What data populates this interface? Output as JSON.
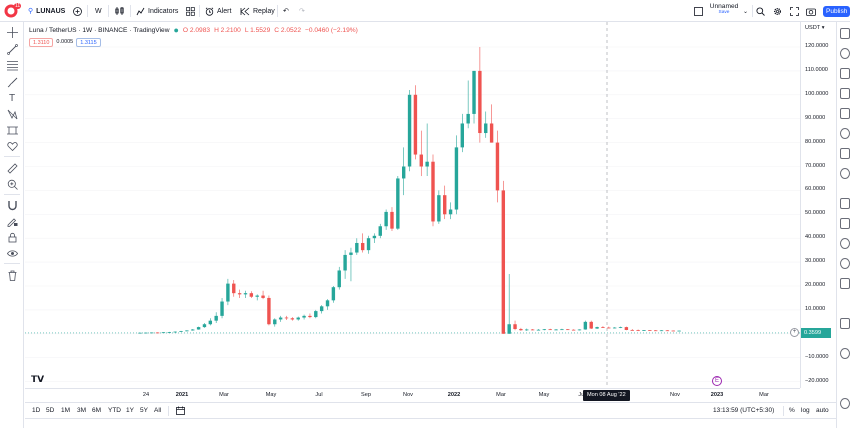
{
  "topbar": {
    "symbol": "LUNAUS",
    "avatar_badge": "11",
    "interval": "W",
    "indicators_label": "Indicators",
    "alert_label": "Alert",
    "replay_label": "Replay",
    "layout_name": "Unnamed",
    "layout_status": "Save",
    "publish_label": "Publish"
  },
  "legend": {
    "title": "Luna / TetherUS · 1W · BINANCE · TradingView",
    "open": "O 2.0983",
    "high": "H 2.2100",
    "low": "L 1.5529",
    "close": "C 2.0522",
    "change": "−0.0460 (−2.19%)",
    "bid": "1.3110",
    "spread": "0.0005",
    "ask": "1.3115"
  },
  "price_axis": {
    "currency": "USDT",
    "labels": [
      "120.0000",
      "110.0000",
      "100.0000",
      "90.0000",
      "80.0000",
      "70.0000",
      "60.0000",
      "50.0000",
      "40.0000",
      "30.0000",
      "20.0000",
      "10.0000",
      "−10.0000",
      "−20.0000"
    ],
    "last_price": "0.3599"
  },
  "time_axis": {
    "labels": [
      "24",
      "2021",
      "Mar",
      "May",
      "Jul",
      "Sep",
      "Nov",
      "2022",
      "Mar",
      "May",
      "Jul",
      "Nov",
      "2023",
      "Mar"
    ],
    "crosshair_label": "Mon 08 Aug '22"
  },
  "bottom_bar": {
    "ranges": [
      "1D",
      "5D",
      "1M",
      "3M",
      "6M",
      "YTD",
      "1Y",
      "5Y",
      "All"
    ],
    "clock": "13:13:59 (UTC+5:30)",
    "percent_label": "%",
    "log_label": "log",
    "auto_label": "auto"
  },
  "colors": {
    "up": "#26a69a",
    "down": "#ef5350",
    "accent": "#2962ff"
  },
  "chart_data": {
    "type": "candlestick",
    "title": "Luna / TetherUS · 1W · BINANCE",
    "xlabel": "",
    "ylabel": "USDT",
    "ylim": [
      -22,
      126
    ],
    "x_axis_ticks": [
      "24",
      "2021",
      "Mar",
      "May",
      "Jul",
      "Sep",
      "Nov",
      "2022",
      "Mar",
      "May",
      "Jul",
      "Nov",
      "2023",
      "Mar"
    ],
    "candles": [
      {
        "o": 0.4,
        "h": 0.5,
        "l": 0.3,
        "c": 0.45
      },
      {
        "o": 0.45,
        "h": 0.55,
        "l": 0.4,
        "c": 0.5
      },
      {
        "o": 0.5,
        "h": 0.6,
        "l": 0.42,
        "c": 0.55
      },
      {
        "o": 0.55,
        "h": 0.65,
        "l": 0.45,
        "c": 0.48
      },
      {
        "o": 0.48,
        "h": 0.7,
        "l": 0.45,
        "c": 0.65
      },
      {
        "o": 0.65,
        "h": 0.8,
        "l": 0.55,
        "c": 0.75
      },
      {
        "o": 0.75,
        "h": 1.0,
        "l": 0.7,
        "c": 0.9
      },
      {
        "o": 0.9,
        "h": 1.2,
        "l": 0.8,
        "c": 1.1
      },
      {
        "o": 1.1,
        "h": 1.5,
        "l": 0.95,
        "c": 1.4
      },
      {
        "o": 1.4,
        "h": 2.0,
        "l": 1.3,
        "c": 1.8
      },
      {
        "o": 1.8,
        "h": 3.0,
        "l": 1.7,
        "c": 2.8
      },
      {
        "o": 2.8,
        "h": 4.5,
        "l": 2.5,
        "c": 4.0
      },
      {
        "o": 4.0,
        "h": 6.5,
        "l": 3.5,
        "c": 5.5
      },
      {
        "o": 5.5,
        "h": 9.0,
        "l": 4.5,
        "c": 7.5
      },
      {
        "o": 7.5,
        "h": 15.0,
        "l": 6.5,
        "c": 13.5
      },
      {
        "o": 13.5,
        "h": 23.0,
        "l": 12.0,
        "c": 21.0
      },
      {
        "o": 21.0,
        "h": 22.5,
        "l": 15.5,
        "c": 17.0
      },
      {
        "o": 17.0,
        "h": 18.5,
        "l": 15.0,
        "c": 16.5
      },
      {
        "o": 16.5,
        "h": 18.0,
        "l": 15.0,
        "c": 17.0
      },
      {
        "o": 17.0,
        "h": 17.8,
        "l": 15.0,
        "c": 15.5
      },
      {
        "o": 15.5,
        "h": 16.5,
        "l": 14.0,
        "c": 16.0
      },
      {
        "o": 16.0,
        "h": 18.0,
        "l": 14.5,
        "c": 15.0
      },
      {
        "o": 15.0,
        "h": 16.0,
        "l": 3.5,
        "c": 4.0
      },
      {
        "o": 4.0,
        "h": 6.5,
        "l": 3.0,
        "c": 6.0
      },
      {
        "o": 6.0,
        "h": 7.5,
        "l": 5.0,
        "c": 6.8
      },
      {
        "o": 6.8,
        "h": 7.5,
        "l": 5.8,
        "c": 6.5
      },
      {
        "o": 6.5,
        "h": 7.0,
        "l": 5.5,
        "c": 6.0
      },
      {
        "o": 6.0,
        "h": 7.2,
        "l": 5.5,
        "c": 6.8
      },
      {
        "o": 6.8,
        "h": 8.0,
        "l": 6.0,
        "c": 7.5
      },
      {
        "o": 7.5,
        "h": 8.5,
        "l": 6.5,
        "c": 7.0
      },
      {
        "o": 7.0,
        "h": 10.0,
        "l": 6.5,
        "c": 9.5
      },
      {
        "o": 9.5,
        "h": 12.0,
        "l": 8.5,
        "c": 11.5
      },
      {
        "o": 11.5,
        "h": 14.5,
        "l": 10.0,
        "c": 14.0
      },
      {
        "o": 14.0,
        "h": 20.0,
        "l": 13.0,
        "c": 19.5
      },
      {
        "o": 19.5,
        "h": 28.0,
        "l": 18.5,
        "c": 26.5
      },
      {
        "o": 26.5,
        "h": 35.0,
        "l": 23.0,
        "c": 33.0
      },
      {
        "o": 33.0,
        "h": 36.0,
        "l": 22.0,
        "c": 34.0
      },
      {
        "o": 34.0,
        "h": 40.0,
        "l": 33.0,
        "c": 38.0
      },
      {
        "o": 38.0,
        "h": 42.0,
        "l": 34.0,
        "c": 35.0
      },
      {
        "o": 35.0,
        "h": 41.0,
        "l": 33.5,
        "c": 40.0
      },
      {
        "o": 40.0,
        "h": 42.0,
        "l": 38.0,
        "c": 41.0
      },
      {
        "o": 41.0,
        "h": 46.0,
        "l": 40.0,
        "c": 45.0
      },
      {
        "o": 45.0,
        "h": 52.0,
        "l": 43.5,
        "c": 51.0
      },
      {
        "o": 51.0,
        "h": 53.0,
        "l": 43.0,
        "c": 44.0
      },
      {
        "o": 44.0,
        "h": 66.0,
        "l": 43.5,
        "c": 65.0
      },
      {
        "o": 65.0,
        "h": 78.0,
        "l": 58.0,
        "c": 70.0
      },
      {
        "o": 70.0,
        "h": 102.0,
        "l": 68.0,
        "c": 100.0
      },
      {
        "o": 100.0,
        "h": 104.0,
        "l": 73.0,
        "c": 75.0
      },
      {
        "o": 75.0,
        "h": 85.0,
        "l": 66.0,
        "c": 70.0
      },
      {
        "o": 70.0,
        "h": 88.0,
        "l": 66.0,
        "c": 72.0
      },
      {
        "o": 72.0,
        "h": 75.0,
        "l": 45.0,
        "c": 47.0
      },
      {
        "o": 47.0,
        "h": 60.0,
        "l": 46.0,
        "c": 58.0
      },
      {
        "o": 58.0,
        "h": 62.0,
        "l": 48.0,
        "c": 50.0
      },
      {
        "o": 50.0,
        "h": 55.0,
        "l": 48.0,
        "c": 52.0
      },
      {
        "o": 52.0,
        "h": 83.0,
        "l": 50.0,
        "c": 78.0
      },
      {
        "o": 78.0,
        "h": 92.0,
        "l": 76.0,
        "c": 88.0
      },
      {
        "o": 88.0,
        "h": 106.0,
        "l": 86.0,
        "c": 92.0
      },
      {
        "o": 92.0,
        "h": 110.0,
        "l": 88.0,
        "c": 110.0
      },
      {
        "o": 110.0,
        "h": 120.0,
        "l": 80.0,
        "c": 84.0
      },
      {
        "o": 84.0,
        "h": 93.0,
        "l": 82.0,
        "c": 88.0
      },
      {
        "o": 88.0,
        "h": 96.0,
        "l": 80.0,
        "c": 80.0
      },
      {
        "o": 80.0,
        "h": 85.0,
        "l": 55.0,
        "c": 60.0
      },
      {
        "o": 60.0,
        "h": 64.0,
        "l": 0.01,
        "c": 0.02
      },
      {
        "o": 0.02,
        "h": 25.0,
        "l": 0.01,
        "c": 4.0
      },
      {
        "o": 4.0,
        "h": 5.5,
        "l": 1.5,
        "c": 2.0
      },
      {
        "o": 2.0,
        "h": 2.5,
        "l": 1.2,
        "c": 1.5
      },
      {
        "o": 1.5,
        "h": 2.2,
        "l": 1.2,
        "c": 1.8
      },
      {
        "o": 1.8,
        "h": 2.0,
        "l": 1.5,
        "c": 1.6
      },
      {
        "o": 1.6,
        "h": 2.0,
        "l": 1.4,
        "c": 1.7
      },
      {
        "o": 1.7,
        "h": 2.0,
        "l": 1.5,
        "c": 1.9
      },
      {
        "o": 1.9,
        "h": 2.1,
        "l": 1.6,
        "c": 1.7
      },
      {
        "o": 1.7,
        "h": 2.0,
        "l": 1.5,
        "c": 1.8
      },
      {
        "o": 1.8,
        "h": 2.1,
        "l": 1.6,
        "c": 1.9
      },
      {
        "o": 1.9,
        "h": 2.0,
        "l": 1.6,
        "c": 1.7
      },
      {
        "o": 1.7,
        "h": 1.9,
        "l": 1.5,
        "c": 1.6
      },
      {
        "o": 1.6,
        "h": 1.9,
        "l": 1.4,
        "c": 1.8
      },
      {
        "o": 1.8,
        "h": 5.5,
        "l": 1.7,
        "c": 5.0
      },
      {
        "o": 5.0,
        "h": 5.5,
        "l": 2.0,
        "c": 2.2
      },
      {
        "o": 2.2,
        "h": 3.0,
        "l": 2.0,
        "c": 2.8
      },
      {
        "o": 2.8,
        "h": 3.2,
        "l": 2.5,
        "c": 2.6
      },
      {
        "o": 2.6,
        "h": 3.0,
        "l": 2.3,
        "c": 2.5
      },
      {
        "o": 2.5,
        "h": 2.8,
        "l": 2.2,
        "c": 2.6
      },
      {
        "o": 2.6,
        "h": 3.0,
        "l": 2.4,
        "c": 2.8
      },
      {
        "o": 2.8,
        "h": 3.0,
        "l": 1.5,
        "c": 1.6
      },
      {
        "o": 1.6,
        "h": 2.0,
        "l": 1.4,
        "c": 1.5
      },
      {
        "o": 1.5,
        "h": 1.8,
        "l": 1.3,
        "c": 1.4
      },
      {
        "o": 1.4,
        "h": 1.6,
        "l": 1.3,
        "c": 1.55
      },
      {
        "o": 1.55,
        "h": 1.6,
        "l": 1.35,
        "c": 1.45
      },
      {
        "o": 1.45,
        "h": 1.55,
        "l": 1.3,
        "c": 1.4
      },
      {
        "o": 1.4,
        "h": 1.55,
        "l": 1.25,
        "c": 1.45
      },
      {
        "o": 1.45,
        "h": 1.55,
        "l": 1.3,
        "c": 1.35
      },
      {
        "o": 1.35,
        "h": 1.4,
        "l": 1.2,
        "c": 1.3
      },
      {
        "o": 1.3,
        "h": 1.4,
        "l": 1.2,
        "c": 1.32
      }
    ]
  }
}
